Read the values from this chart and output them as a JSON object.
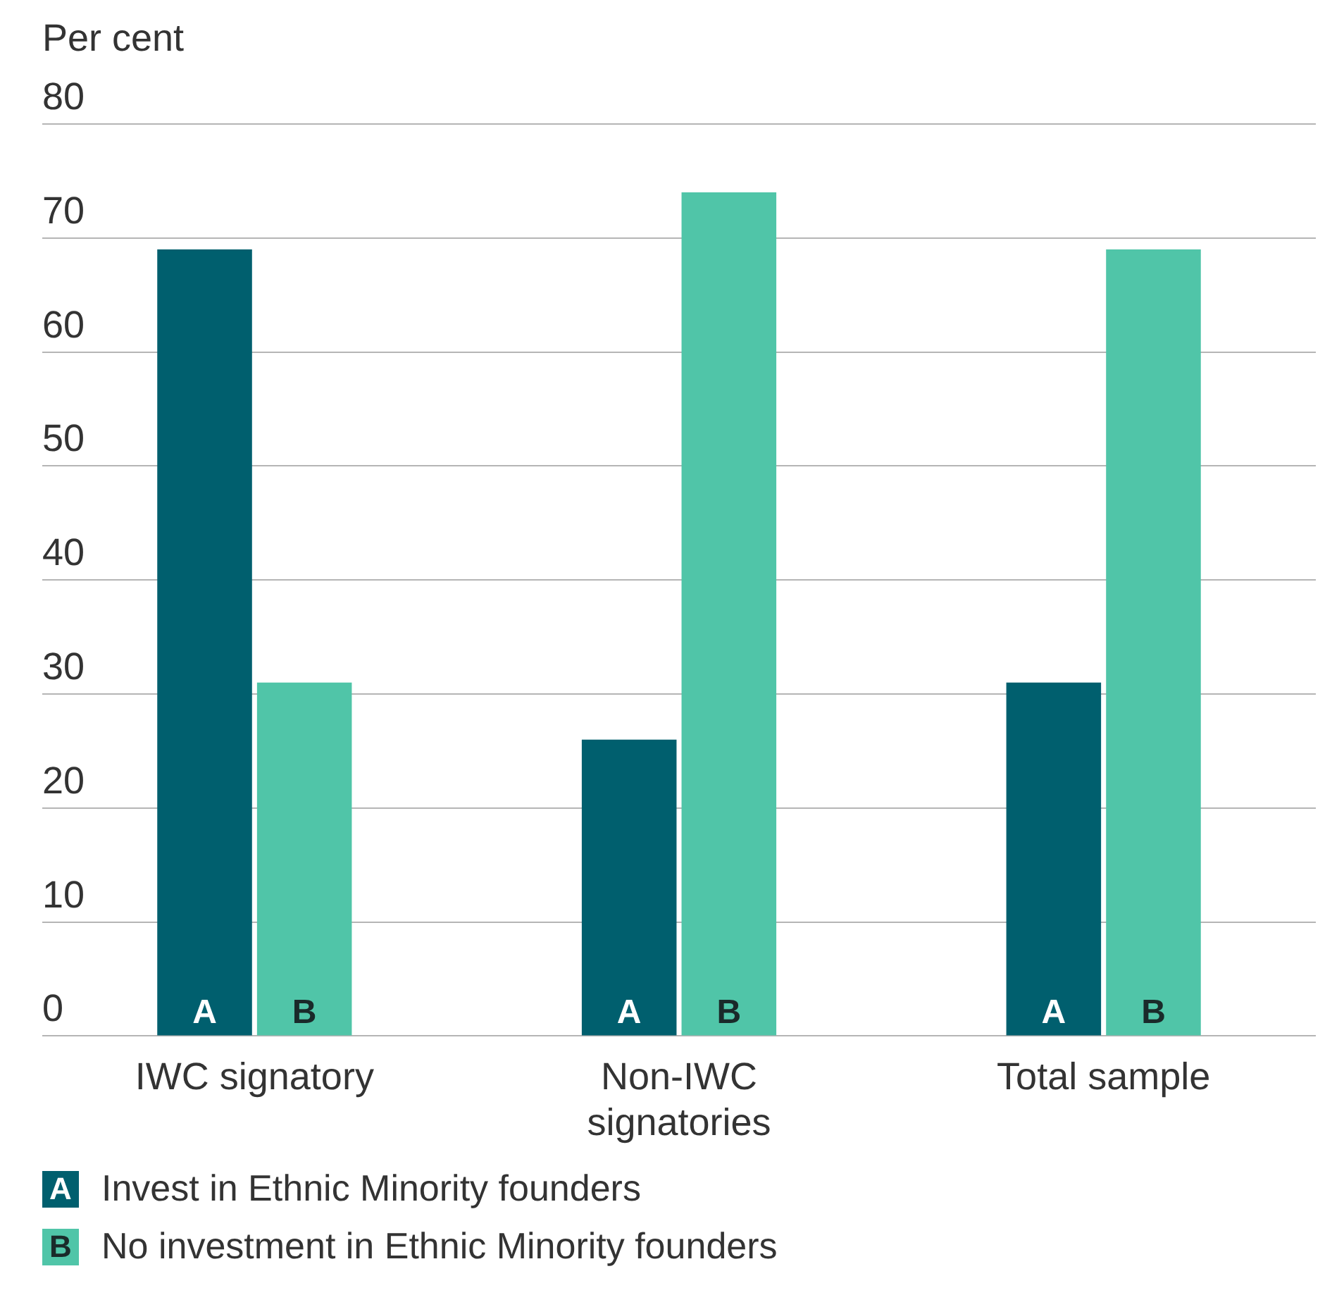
{
  "chart_data": {
    "type": "bar",
    "ylabel": "Per cent",
    "categories": [
      "IWC signatory",
      "Non-IWC signatories",
      "Total sample"
    ],
    "series": [
      {
        "name": "Invest in Ethnic Minority founders",
        "color": "#005f6e",
        "values": [
          69,
          26,
          31
        ]
      },
      {
        "name": "No investment in Ethnic Minority founders",
        "color": "#50c5a8",
        "values": [
          31,
          74,
          69
        ]
      }
    ],
    "ylim": [
      0,
      80
    ],
    "yticks": [
      0,
      10,
      20,
      30,
      40,
      50,
      60,
      70,
      80
    ],
    "grid": "y",
    "legend": "bottom left",
    "annotations": [
      {
        "text": "A",
        "x": "IWC signatory",
        "y": 0
      },
      {
        "text": "B",
        "x": "IWC signatory",
        "y": 0
      },
      {
        "text": "A",
        "x": "Non-IWC signatories",
        "y": 0
      },
      {
        "text": "B",
        "x": "Non-IWC signatories",
        "y": 0
      },
      {
        "text": "A",
        "x": "Total sample",
        "y": 0
      },
      {
        "text": "B",
        "x": "Total sample",
        "y": 0
      }
    ]
  }
}
